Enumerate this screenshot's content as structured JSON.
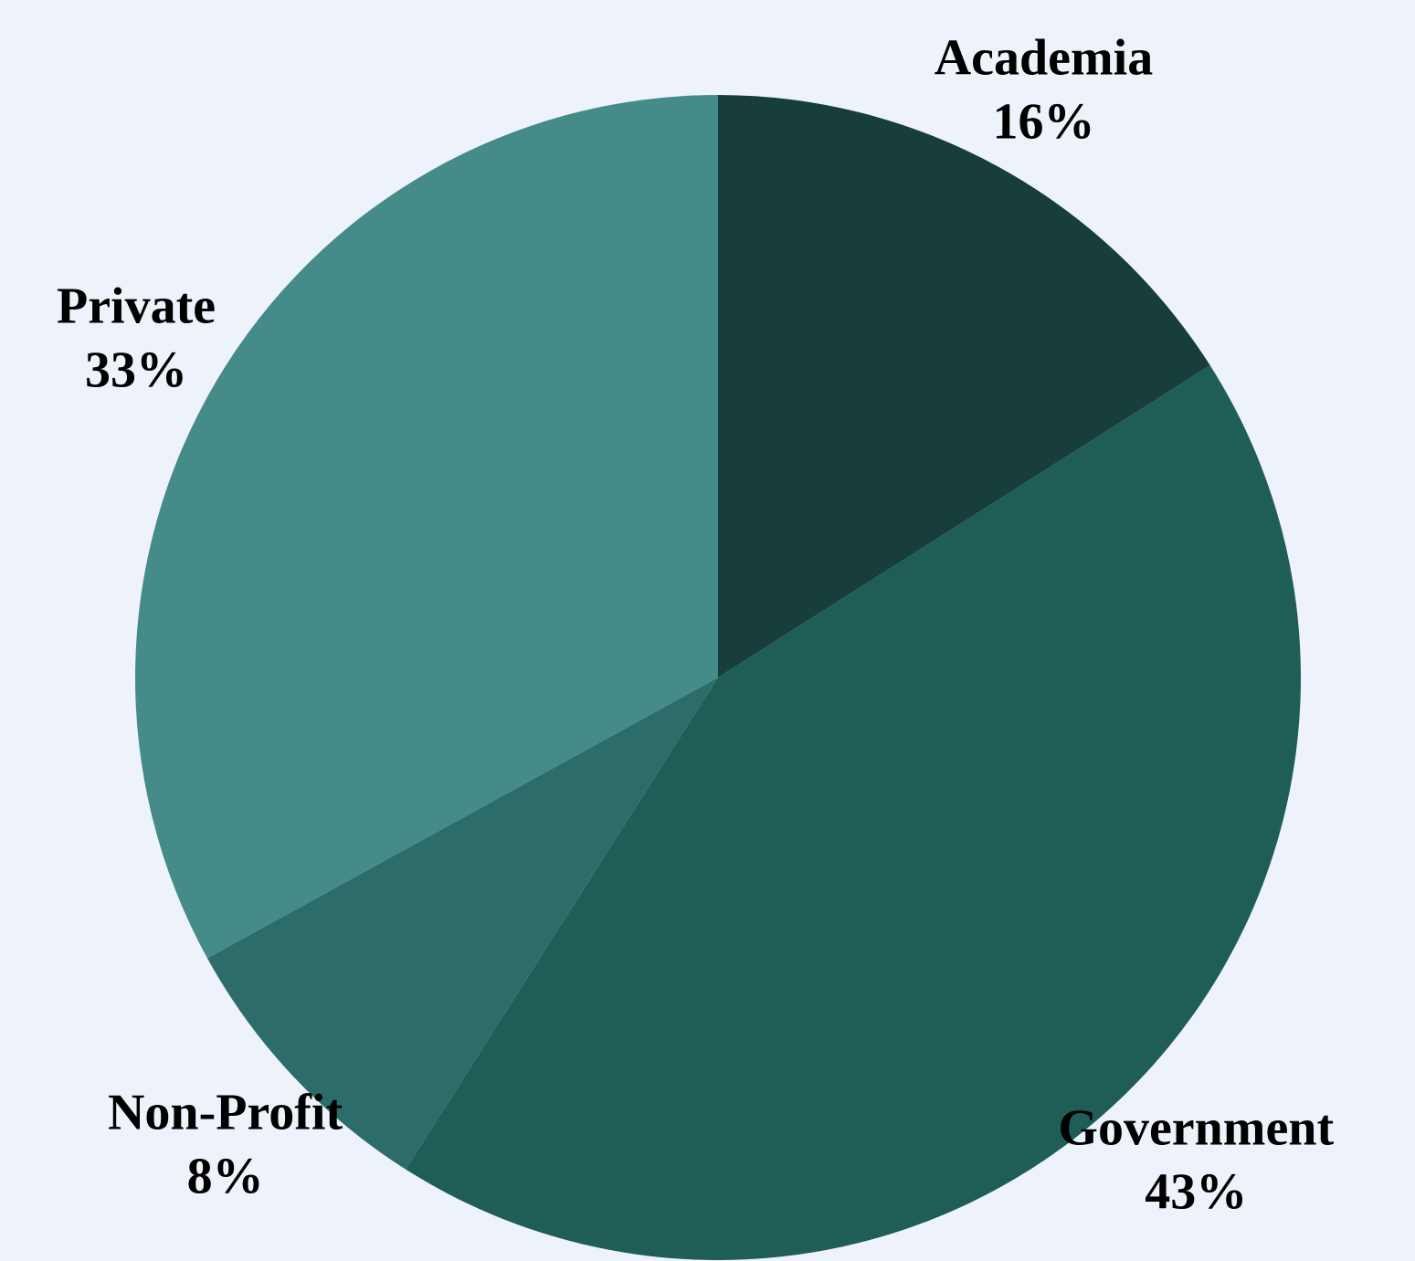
{
  "chart_data": {
    "type": "pie",
    "start_angle_deg": 0,
    "direction": "clockwise",
    "slices": [
      {
        "label": "Academia",
        "value": 16,
        "value_label": "16%",
        "color": "#173e3b"
      },
      {
        "label": "Government",
        "value": 43,
        "value_label": "43%",
        "color": "#1f5d57"
      },
      {
        "label": "Non-Profit",
        "value": 8,
        "value_label": "8%",
        "color": "#2c6d6b"
      },
      {
        "label": "Private",
        "value": 33,
        "value_label": "33%",
        "color": "#448b89"
      }
    ],
    "background_color": "#eef3fb"
  }
}
